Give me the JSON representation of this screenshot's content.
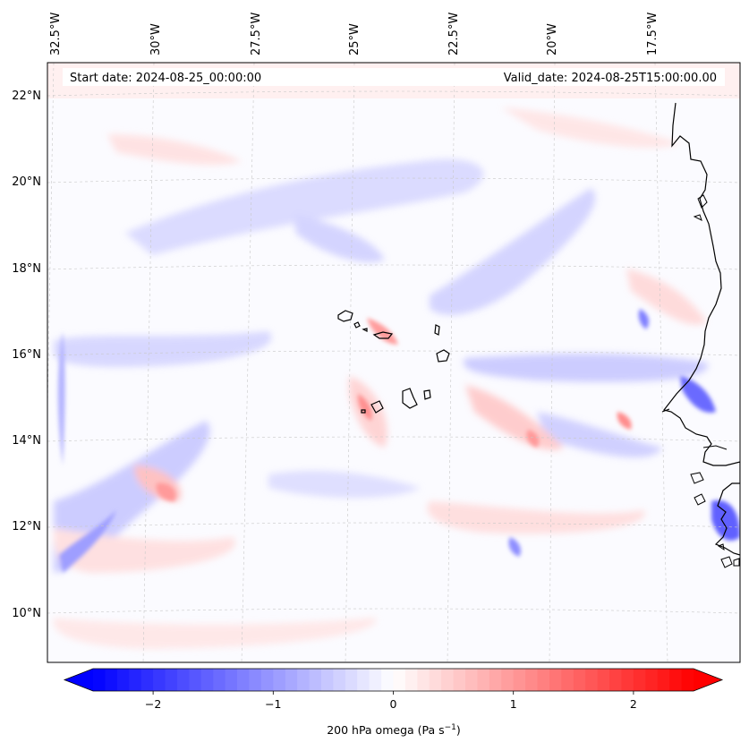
{
  "map": {
    "start_date_text": "Start date: 2024-08-25_00:00:00",
    "valid_date_text": "Valid_date: 2024-08-25T15:00:00.00",
    "lon_labels": [
      "32.5°W",
      "30°W",
      "27.5°W",
      "25°W",
      "22.5°W",
      "20°W",
      "17.5°W"
    ],
    "lat_labels": [
      "22°N",
      "20°N",
      "18°N",
      "16°N",
      "14°N",
      "12°N",
      "10°N"
    ],
    "field": "200 hPa omega",
    "features": [
      "Cape Verde islands",
      "West African coastline (Senegal, Gambia, Guinea-Bissau)"
    ]
  },
  "colorbar": {
    "label_prefix": "200 hPa omega (Pa s",
    "label_exp": "−1",
    "label_suffix": ")",
    "ticks": [
      "−2",
      "−1",
      "0",
      "1",
      "2"
    ],
    "tick_values": [
      -2,
      -1,
      0,
      1,
      2
    ],
    "range": [
      -2.5,
      2.5
    ],
    "colormap": "bwr",
    "extend": "both",
    "color_low": "#0000ff",
    "color_mid": "#ffffff",
    "color_high": "#ff0000"
  }
}
